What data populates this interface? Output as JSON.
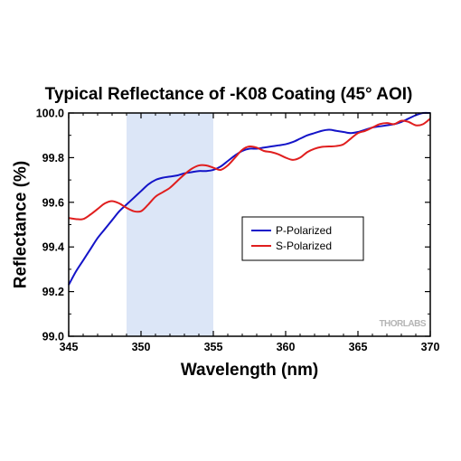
{
  "chart_data": {
    "type": "line",
    "title": "Typical Reflectance of -K08 Coating (45° AOI)",
    "xlabel": "Wavelength (nm)",
    "ylabel": "Reflectance (%)",
    "xlim": [
      345,
      370
    ],
    "ylim": [
      99.0,
      100.0
    ],
    "x_ticks": [
      345,
      350,
      355,
      360,
      365,
      370
    ],
    "y_ticks": [
      99.0,
      99.2,
      99.4,
      99.6,
      99.8,
      100.0
    ],
    "x_tick_labels": [
      "345",
      "350",
      "355",
      "360",
      "365",
      "370"
    ],
    "y_tick_labels": [
      "99.0",
      "99.2",
      "99.4",
      "99.6",
      "99.8",
      "100.0"
    ],
    "highlight_band": {
      "x_start": 349,
      "x_end": 355,
      "color": "#dce6f7"
    },
    "grid": false,
    "legend_position": "center-right",
    "watermark": "THORLABS",
    "series": [
      {
        "name": "P-Polarized",
        "color": "#1414c8",
        "x": [
          345,
          345.5,
          346,
          346.5,
          347,
          347.5,
          348,
          348.5,
          349,
          349.5,
          350,
          350.5,
          351,
          351.5,
          352,
          352.5,
          353,
          353.5,
          354,
          354.5,
          355,
          355.5,
          356,
          356.5,
          357,
          357.5,
          358,
          358.5,
          359,
          359.5,
          360,
          360.5,
          361,
          361.5,
          362,
          362.5,
          363,
          363.5,
          364,
          364.5,
          365,
          365.5,
          366,
          366.5,
          367,
          367.5,
          368,
          368.5,
          369,
          369.5,
          370
        ],
        "values": [
          99.23,
          99.29,
          99.34,
          99.39,
          99.44,
          99.48,
          99.52,
          99.56,
          99.59,
          99.62,
          99.65,
          99.68,
          99.7,
          99.71,
          99.715,
          99.72,
          99.73,
          99.735,
          99.74,
          99.74,
          99.745,
          99.76,
          99.785,
          99.81,
          99.83,
          99.84,
          99.84,
          99.845,
          99.85,
          99.855,
          99.86,
          99.87,
          99.885,
          99.9,
          99.91,
          99.92,
          99.925,
          99.92,
          99.915,
          99.91,
          99.915,
          99.925,
          99.935,
          99.94,
          99.945,
          99.95,
          99.96,
          99.975,
          99.99,
          100.0,
          100.0
        ]
      },
      {
        "name": "S-Polarized",
        "color": "#e01e1e",
        "x": [
          345,
          345.5,
          346,
          346.5,
          347,
          347.5,
          348,
          348.5,
          349,
          349.5,
          350,
          350.5,
          351,
          351.5,
          352,
          352.5,
          353,
          353.5,
          354,
          354.5,
          355,
          355.5,
          356,
          356.5,
          357,
          357.5,
          358,
          358.5,
          359,
          359.5,
          360,
          360.5,
          361,
          361.5,
          362,
          362.5,
          363,
          363.5,
          364,
          364.5,
          365,
          365.5,
          366,
          366.5,
          367,
          367.5,
          368,
          368.5,
          369,
          369.5,
          370
        ],
        "values": [
          99.53,
          99.525,
          99.525,
          99.545,
          99.57,
          99.595,
          99.605,
          99.595,
          99.575,
          99.56,
          99.56,
          99.59,
          99.625,
          99.645,
          99.665,
          99.695,
          99.725,
          99.75,
          99.765,
          99.765,
          99.755,
          99.745,
          99.765,
          99.8,
          99.835,
          99.85,
          99.845,
          99.83,
          99.825,
          99.815,
          99.8,
          99.79,
          99.8,
          99.825,
          99.84,
          99.848,
          99.85,
          99.852,
          99.86,
          99.885,
          99.91,
          99.92,
          99.935,
          99.95,
          99.955,
          99.95,
          99.965,
          99.96,
          99.945,
          99.95,
          99.975
        ]
      }
    ]
  }
}
